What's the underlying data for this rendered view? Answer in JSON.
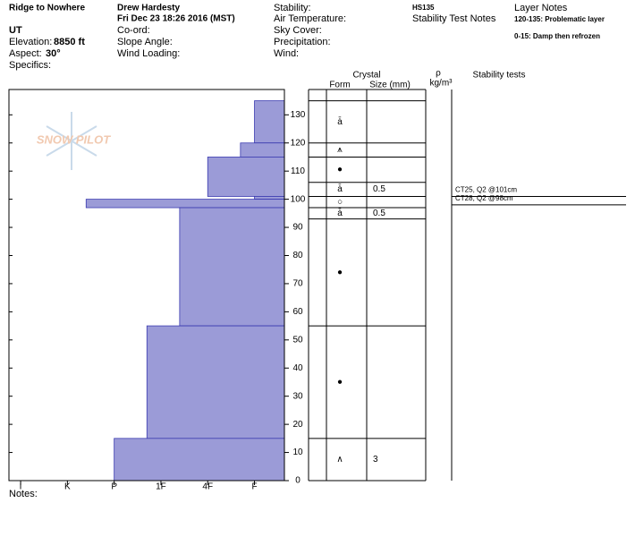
{
  "header": {
    "location": "Ridge to Nowhere",
    "state": "UT",
    "elevation_label": "Elevation:",
    "elevation": "8850 ft",
    "aspect_label": "Aspect:",
    "aspect": "30°",
    "specifics": "Specifics:",
    "observer": "Drew Hardesty",
    "date": "Fri Dec 23 18:26 2016 (MST)",
    "coord": "Co-ord:",
    "slope_angle": "Slope Angle:",
    "wind_loading": "Wind Loading:",
    "stability": "Stability:",
    "air_temperature": "Air Temperature:",
    "sky_cover": "Sky Cover:",
    "precipitation": "Precipitation:",
    "wind": "Wind:",
    "hs": "HS135",
    "stability_test_notes": "Stability Test Notes",
    "layer_notes": "Layer Notes",
    "layer_note_1": "120-135: Problematic layer",
    "layer_note_2": "0-15: Damp then refrozen",
    "logo": "SNOW PILOT",
    "notes": "Notes:"
  },
  "chart_data": {
    "type": "snow-profile",
    "columns": {
      "crystal": "Crystal",
      "form": "Form",
      "size": "Size (mm)",
      "density": "ρ",
      "density_unit": "kg/m³",
      "tests": "Stability tests"
    },
    "ylim": [
      0,
      139
    ],
    "yticks": [
      0,
      10,
      20,
      30,
      40,
      50,
      60,
      70,
      80,
      90,
      100,
      110,
      120,
      130
    ],
    "xlim": [
      6.25,
      0.36
    ],
    "xticks": [
      {
        "value": 6,
        "label": "I"
      },
      {
        "value": 5,
        "label": "K"
      },
      {
        "value": 4,
        "label": "P"
      },
      {
        "value": 3,
        "label": "1F"
      },
      {
        "value": 2,
        "label": "4F"
      },
      {
        "value": 1,
        "label": "F"
      }
    ],
    "color": "#9b9bd7",
    "layers": [
      {
        "top": 135,
        "bottom": 120,
        "hardness": 1
      },
      {
        "top": 120,
        "bottom": 115,
        "hardness": 1.3
      },
      {
        "top": 115,
        "bottom": 101,
        "hardness": 2
      },
      {
        "top": 101,
        "bottom": 100,
        "hardness": 1
      },
      {
        "top": 100,
        "bottom": 97,
        "hardness": 4.6
      },
      {
        "top": 97,
        "bottom": 55,
        "hardness": 2.6
      },
      {
        "top": 55,
        "bottom": 15,
        "hardness": 3.3
      },
      {
        "top": 15,
        "bottom": 0,
        "hardness": 4
      }
    ],
    "crystal_rows": [
      {
        "top": 135,
        "bottom": 120,
        "form": "ǡ"
      },
      {
        "top": 120,
        "bottom": 115,
        "form": "⩚"
      },
      {
        "top": 115,
        "bottom": 106,
        "form": "●"
      },
      {
        "top": 106,
        "bottom": 101,
        "form": "ǡ",
        "size": "0.5"
      },
      {
        "top": 101,
        "bottom": 97,
        "form": "○"
      },
      {
        "top": 97,
        "bottom": 93,
        "form": "ǡ",
        "size": "0.5"
      },
      {
        "top": 93,
        "bottom": 55,
        "form": "●"
      },
      {
        "top": 55,
        "bottom": 15,
        "form": "●"
      },
      {
        "top": 15,
        "bottom": 0,
        "form": "∧",
        "size": "3"
      }
    ],
    "tests": [
      {
        "label": "CT25, Q2 @101cm",
        "depth": 101
      },
      {
        "label": "CT28, Q2 @98cm",
        "depth": 98
      }
    ]
  }
}
